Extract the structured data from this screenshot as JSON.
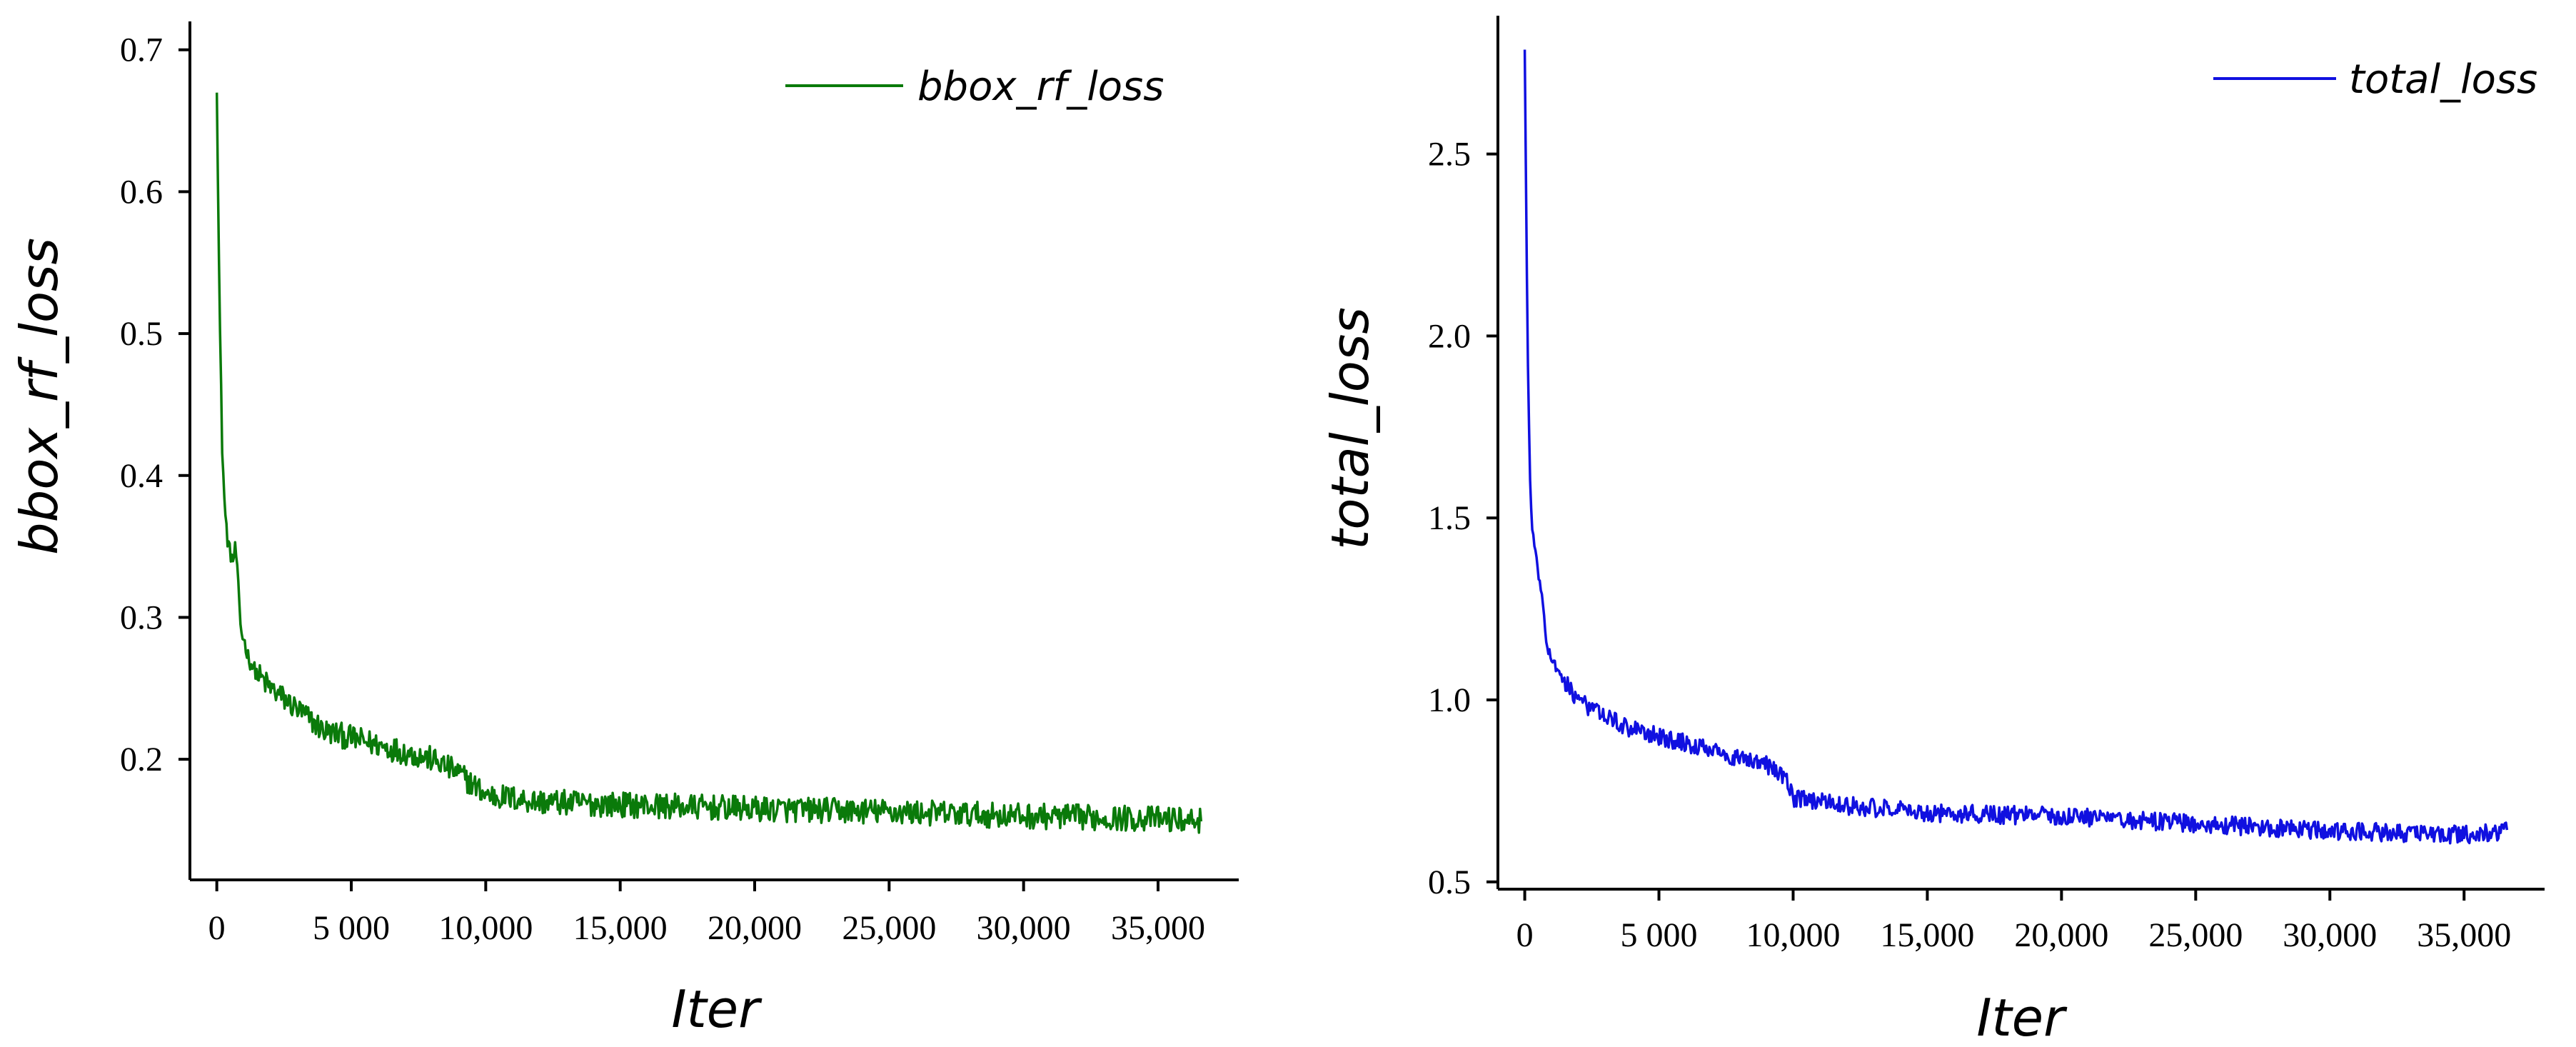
{
  "chart_data": [
    {
      "id": "left",
      "type": "line",
      "title": "",
      "xlabel": "Iter",
      "ylabel": "bbox_rf_loss",
      "xlim": [
        -1000,
        38000
      ],
      "ylim": [
        0.115,
        0.72
      ],
      "xticks": [
        0,
        5000,
        10000,
        15000,
        20000,
        25000,
        30000,
        35000
      ],
      "xtick_labels": [
        "0",
        "5 000",
        "10,000",
        "15,000",
        "20,000",
        "25,000",
        "30,000",
        "35,000"
      ],
      "yticks": [
        0.2,
        0.3,
        0.4,
        0.5,
        0.6,
        0.7
      ],
      "ytick_labels": [
        "0.2",
        "0.3",
        "0.4",
        "0.5",
        "0.6",
        "0.7"
      ],
      "grid": false,
      "legend_position": "top-right",
      "series": [
        {
          "name": "bbox_rf_loss",
          "color": "#0a7a0a",
          "noise_amplitude": 0.009,
          "x": [
            0,
            100,
            200,
            300,
            400,
            500,
            600,
            700,
            800,
            900,
            1000,
            1200,
            1500,
            2000,
            3000,
            4000,
            5000,
            6000,
            7000,
            8000,
            9000,
            10000,
            12000,
            15000,
            20000,
            25000,
            30000,
            35000,
            36600
          ],
          "y": [
            0.675,
            0.52,
            0.42,
            0.375,
            0.355,
            0.345,
            0.34,
            0.35,
            0.32,
            0.29,
            0.285,
            0.27,
            0.26,
            0.25,
            0.235,
            0.22,
            0.215,
            0.21,
            0.205,
            0.2,
            0.19,
            0.175,
            0.17,
            0.168,
            0.165,
            0.163,
            0.16,
            0.158,
            0.157
          ]
        }
      ]
    },
    {
      "id": "right",
      "type": "line",
      "title": "",
      "xlabel": "Iter",
      "ylabel": "total_loss",
      "xlim": [
        -1000,
        38000
      ],
      "ylim": [
        0.48,
        2.88
      ],
      "xticks": [
        0,
        5000,
        10000,
        15000,
        20000,
        25000,
        30000,
        35000
      ],
      "xtick_labels": [
        "0",
        "5 000",
        "10,000",
        "15,000",
        "20,000",
        "25,000",
        "30,000",
        "35,000"
      ],
      "yticks": [
        0.5,
        1.0,
        1.5,
        2.0,
        2.5
      ],
      "ytick_labels": [
        "0.5",
        "1.0",
        "1.5",
        "2.0",
        "2.5"
      ],
      "grid": false,
      "legend_position": "top-right",
      "series": [
        {
          "name": "total_loss",
          "color": "#1010e0",
          "noise_amplitude": 0.025,
          "x": [
            0,
            100,
            200,
            300,
            400,
            500,
            600,
            700,
            800,
            1000,
            1200,
            1500,
            2000,
            3000,
            4000,
            5000,
            6000,
            7000,
            8000,
            9000,
            9800,
            10000,
            12000,
            15000,
            20000,
            25000,
            30000,
            35000,
            36600
          ],
          "y": [
            2.8,
            2.0,
            1.6,
            1.45,
            1.4,
            1.35,
            1.3,
            1.25,
            1.15,
            1.12,
            1.08,
            1.05,
            1.0,
            0.95,
            0.92,
            0.9,
            0.88,
            0.86,
            0.84,
            0.82,
            0.78,
            0.73,
            0.71,
            0.69,
            0.68,
            0.66,
            0.64,
            0.63,
            0.64
          ]
        }
      ]
    }
  ]
}
